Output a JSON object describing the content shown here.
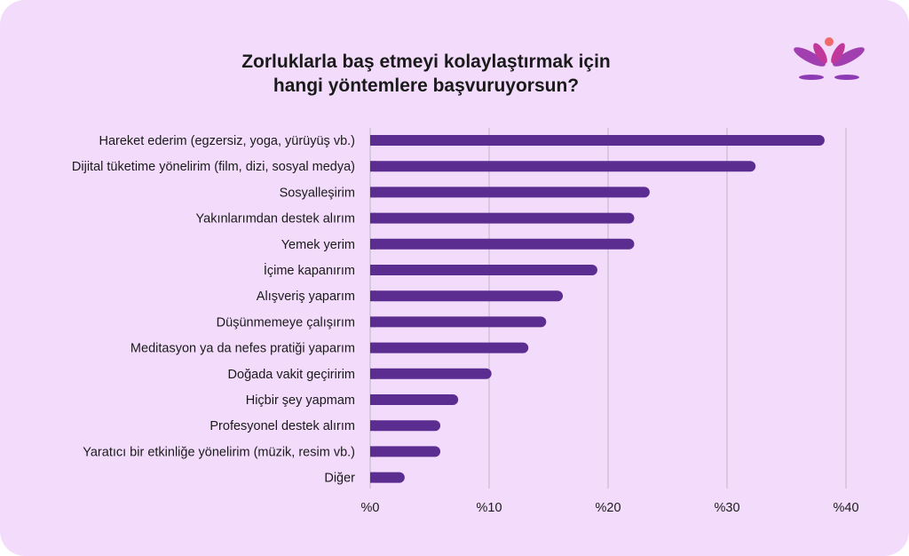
{
  "chart_data": {
    "type": "bar",
    "orientation": "horizontal",
    "title_lines": [
      "Zorluklarla baş etmeyi kolaylaştırmak için",
      "hangi yöntemlere başvuruyorsun?"
    ],
    "categories": [
      "Hareket ederim (egzersiz, yoga, yürüyüş vb.)",
      "Dijital tüketime yönelirim (film, dizi, sosyal medya)",
      "Sosyalleşirim",
      "Yakınlarımdan destek alırım",
      "Yemek yerim",
      "İçime kapanırım",
      "Alışveriş yaparım",
      "Düşünmemeye çalışırım",
      "Meditasyon ya da nefes pratiği yaparım",
      "Doğada vakit geçiririm",
      "Hiçbir şey yapmam",
      "Profesyonel destek alırım",
      "Yaratıcı bir etkinliğe yönelirim (müzik, resim vb.)",
      "Diğer"
    ],
    "values": [
      38.2,
      32.4,
      23.5,
      22.2,
      22.2,
      19.1,
      16.2,
      14.8,
      13.3,
      10.2,
      7.4,
      5.9,
      5.9,
      2.9
    ],
    "xlim": [
      0,
      40
    ],
    "xticks": [
      0,
      10,
      20,
      30,
      40
    ],
    "xtick_labels": [
      "%0",
      "%10",
      "%20",
      "%30",
      "%40"
    ],
    "grid": "vertical",
    "bar_color": "#5b2d91"
  },
  "logo": {
    "name": "lotus-logo-icon",
    "colors": [
      "#f06a6a",
      "#c0399a",
      "#8d3bb5",
      "#5b2d91"
    ]
  }
}
